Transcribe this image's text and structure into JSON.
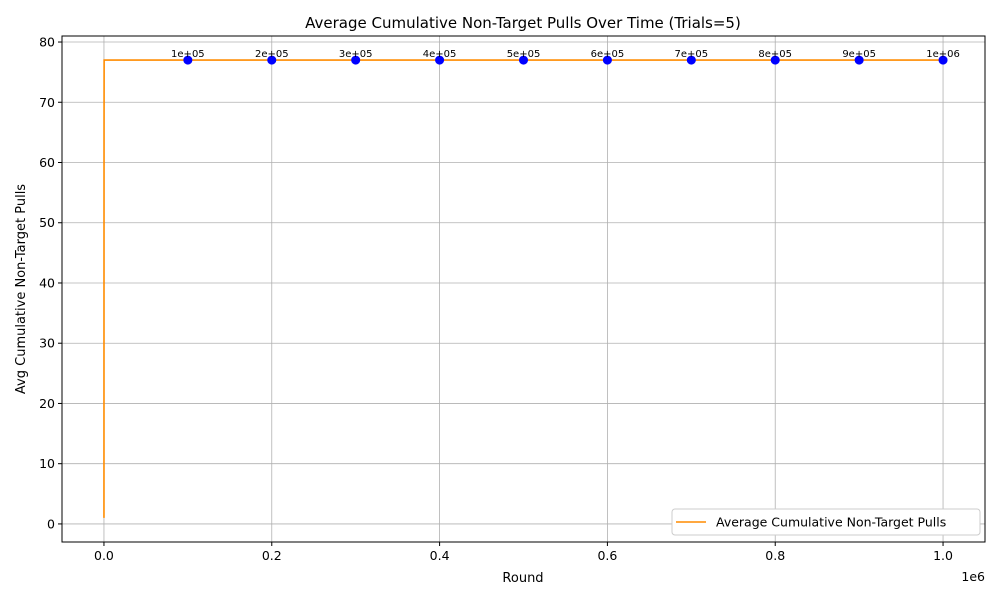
{
  "chart_data": {
    "type": "line",
    "title": "Average Cumulative Non-Target Pulls Over Time (Trials=5)",
    "xlabel": "Round",
    "ylabel": "Avg Cumulative Non-Target Pulls",
    "x_offset_text": "1e6",
    "xlim": [
      -50000,
      1050000
    ],
    "ylim": [
      -3,
      81
    ],
    "x_ticks": [
      0,
      200000,
      400000,
      600000,
      800000,
      1000000
    ],
    "x_tick_labels": [
      "0.0",
      "0.2",
      "0.4",
      "0.6",
      "0.8",
      "1.0"
    ],
    "y_ticks": [
      0,
      10,
      20,
      30,
      40,
      50,
      60,
      70,
      80
    ],
    "y_tick_labels": [
      "0",
      "10",
      "20",
      "30",
      "40",
      "50",
      "60",
      "70",
      "80"
    ],
    "grid": true,
    "legend_position": "bottom-right",
    "line_color": "#ff8c00",
    "marker_color": "#0000ff",
    "series": [
      {
        "name": "Average Cumulative Non-Target Pulls",
        "x": [
          1,
          50,
          100,
          200,
          300,
          1000000
        ],
        "y": [
          1,
          40,
          65,
          77,
          77,
          77
        ]
      }
    ],
    "markers": {
      "x": [
        100000,
        200000,
        300000,
        400000,
        500000,
        600000,
        700000,
        800000,
        900000,
        1000000
      ],
      "y": [
        77,
        77,
        77,
        77,
        77,
        77,
        77,
        77,
        77,
        77
      ],
      "labels": [
        "1e+05",
        "2e+05",
        "3e+05",
        "4e+05",
        "5e+05",
        "6e+05",
        "7e+05",
        "8e+05",
        "9e+05",
        "1e+06"
      ]
    }
  }
}
